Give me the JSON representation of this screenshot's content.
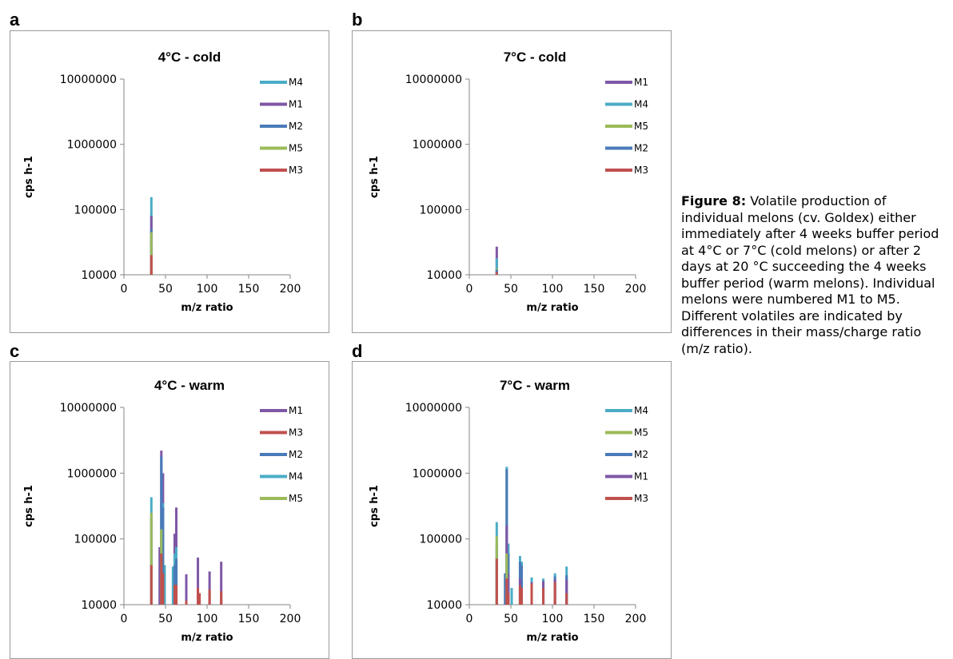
{
  "colors": {
    "M1": "#7e57a6",
    "M2": "#4a7ab8",
    "M3": "#c0504d",
    "M4": "#4bacc6",
    "M5": "#9bbb59"
  },
  "caption": {
    "label": "Figure 8:",
    "text": " Volatile production of individual melons (cv. Goldex) either immediately after 4 weeks buffer period at 4°C or 7°C (cold melons) or after 2 days at 20 °C succeeding the 4 weeks buffer period (warm melons). Individual melons were numbered M1 to M5. Different volatiles are indicated by differences in their mass/charge ratio (m/z ratio)."
  },
  "chart_data": [
    {
      "type": "bar",
      "panel": "a",
      "title": "4°C - cold",
      "xlabel": "m/z ratio",
      "ylabel": "cps h-1",
      "xlim": [
        0,
        200
      ],
      "xticks": [
        "0",
        "50",
        "100",
        "150",
        "200"
      ],
      "ylim": [
        10000,
        10000000
      ],
      "yscale": "log",
      "yticks": [
        "10000",
        "100000",
        "1000000",
        "10000000"
      ],
      "legend": [
        "M4",
        "M1",
        "M2",
        "M5",
        "M3"
      ],
      "series": [
        {
          "name": "M4",
          "points": [
            [
              33,
              155000
            ]
          ]
        },
        {
          "name": "M1",
          "points": [
            [
              33,
              80000
            ]
          ]
        },
        {
          "name": "M2",
          "points": [
            [
              33,
              50000
            ]
          ]
        },
        {
          "name": "M5",
          "points": [
            [
              33,
              45000
            ]
          ]
        },
        {
          "name": "M3",
          "points": [
            [
              33,
              20000
            ]
          ]
        }
      ]
    },
    {
      "type": "bar",
      "panel": "b",
      "title": "7°C - cold",
      "xlabel": "m/z ratio",
      "ylabel": "cps h-1",
      "xlim": [
        0,
        200
      ],
      "xticks": [
        "0",
        "50",
        "100",
        "150",
        "200"
      ],
      "ylim": [
        10000,
        10000000
      ],
      "yscale": "log",
      "yticks": [
        "10000",
        "100000",
        "1000000",
        "10000000"
      ],
      "legend": [
        "M1",
        "M4",
        "M5",
        "M2",
        "M3"
      ],
      "series": [
        {
          "name": "M1",
          "points": [
            [
              33,
              27000
            ]
          ]
        },
        {
          "name": "M4",
          "points": [
            [
              33,
              18000
            ]
          ]
        },
        {
          "name": "M5",
          "points": [
            [
              33,
              12500
            ]
          ]
        },
        {
          "name": "M2",
          "points": [
            [
              33,
              12000
            ]
          ]
        },
        {
          "name": "M3",
          "points": [
            [
              33,
              11000
            ]
          ]
        }
      ]
    },
    {
      "type": "bar",
      "panel": "c",
      "title": "4°C - warm",
      "xlabel": "m/z ratio",
      "ylabel": "cps h-1",
      "xlim": [
        0,
        200
      ],
      "xticks": [
        "0",
        "50",
        "100",
        "150",
        "200"
      ],
      "ylim": [
        10000,
        10000000
      ],
      "yscale": "log",
      "yticks": [
        "10000",
        "100000",
        "1000000",
        "10000000"
      ],
      "legend": [
        "M1",
        "M3",
        "M2",
        "M4",
        "M5"
      ],
      "series": [
        {
          "name": "M1",
          "points": [
            [
              33,
              210000
            ],
            [
              43,
              75000
            ],
            [
              45,
              2200000
            ],
            [
              47,
              1000000
            ],
            [
              61,
              120000
            ],
            [
              63,
              300000
            ],
            [
              75,
              29000
            ],
            [
              89,
              52000
            ],
            [
              103,
              32000
            ],
            [
              117,
              45000
            ]
          ]
        },
        {
          "name": "M4",
          "points": [
            [
              33,
              430000
            ],
            [
              45,
              1600000
            ],
            [
              47,
              350000
            ],
            [
              49,
              40000
            ],
            [
              59,
              38000
            ],
            [
              61,
              60000
            ],
            [
              63,
              75000
            ]
          ]
        },
        {
          "name": "M2",
          "points": [
            [
              45,
              1800000
            ],
            [
              47,
              300000
            ],
            [
              61,
              40000
            ],
            [
              63,
              50000
            ]
          ]
        },
        {
          "name": "M5",
          "points": [
            [
              33,
              250000
            ],
            [
              45,
              140000
            ],
            [
              47,
              20000
            ]
          ]
        },
        {
          "name": "M3",
          "points": [
            [
              33,
              40000
            ],
            [
              45,
              60000
            ],
            [
              47,
              30000
            ],
            [
              61,
              20000
            ],
            [
              63,
              20000
            ],
            [
              75,
              11500
            ],
            [
              89,
              18000
            ],
            [
              91,
              15000
            ],
            [
              103,
              17000
            ],
            [
              117,
              16000
            ]
          ]
        }
      ]
    },
    {
      "type": "bar",
      "panel": "d",
      "title": "7°C - warm",
      "xlabel": "m/z ratio",
      "ylabel": "cps h-1",
      "xlim": [
        0,
        200
      ],
      "xticks": [
        "0",
        "50",
        "100",
        "150",
        "200"
      ],
      "ylim": [
        10000,
        10000000
      ],
      "yscale": "log",
      "yticks": [
        "10000",
        "100000",
        "1000000",
        "10000000"
      ],
      "legend": [
        "M4",
        "M5",
        "M2",
        "M1",
        "M3"
      ],
      "series": [
        {
          "name": "M4",
          "points": [
            [
              33,
              180000
            ],
            [
              45,
              1250000
            ],
            [
              47,
              85000
            ],
            [
              51,
              18000
            ],
            [
              61,
              55000
            ],
            [
              63,
              45000
            ],
            [
              75,
              26000
            ],
            [
              89,
              25000
            ],
            [
              103,
              30000
            ],
            [
              117,
              38000
            ]
          ]
        },
        {
          "name": "M2",
          "points": [
            [
              43,
              30000
            ],
            [
              45,
              1150000
            ],
            [
              47,
              60000
            ],
            [
              61,
              45000
            ],
            [
              63,
              40000
            ],
            [
              103,
              27000
            ],
            [
              117,
              28000
            ]
          ]
        },
        {
          "name": "M1",
          "points": [
            [
              33,
              80000
            ],
            [
              45,
              160000
            ],
            [
              47,
              30000
            ],
            [
              61,
              25000
            ],
            [
              75,
              22000
            ],
            [
              89,
              23000
            ],
            [
              103,
              24000
            ],
            [
              117,
              24000
            ]
          ]
        },
        {
          "name": "M5",
          "points": [
            [
              33,
              110000
            ],
            [
              45,
              60000
            ]
          ]
        },
        {
          "name": "M3",
          "points": [
            [
              33,
              50000
            ],
            [
              45,
              25000
            ],
            [
              47,
              15000
            ],
            [
              61,
              20000
            ],
            [
              63,
              18000
            ],
            [
              75,
              21000
            ],
            [
              89,
              18000
            ],
            [
              103,
              22000
            ],
            [
              117,
              15000
            ]
          ]
        }
      ]
    }
  ]
}
